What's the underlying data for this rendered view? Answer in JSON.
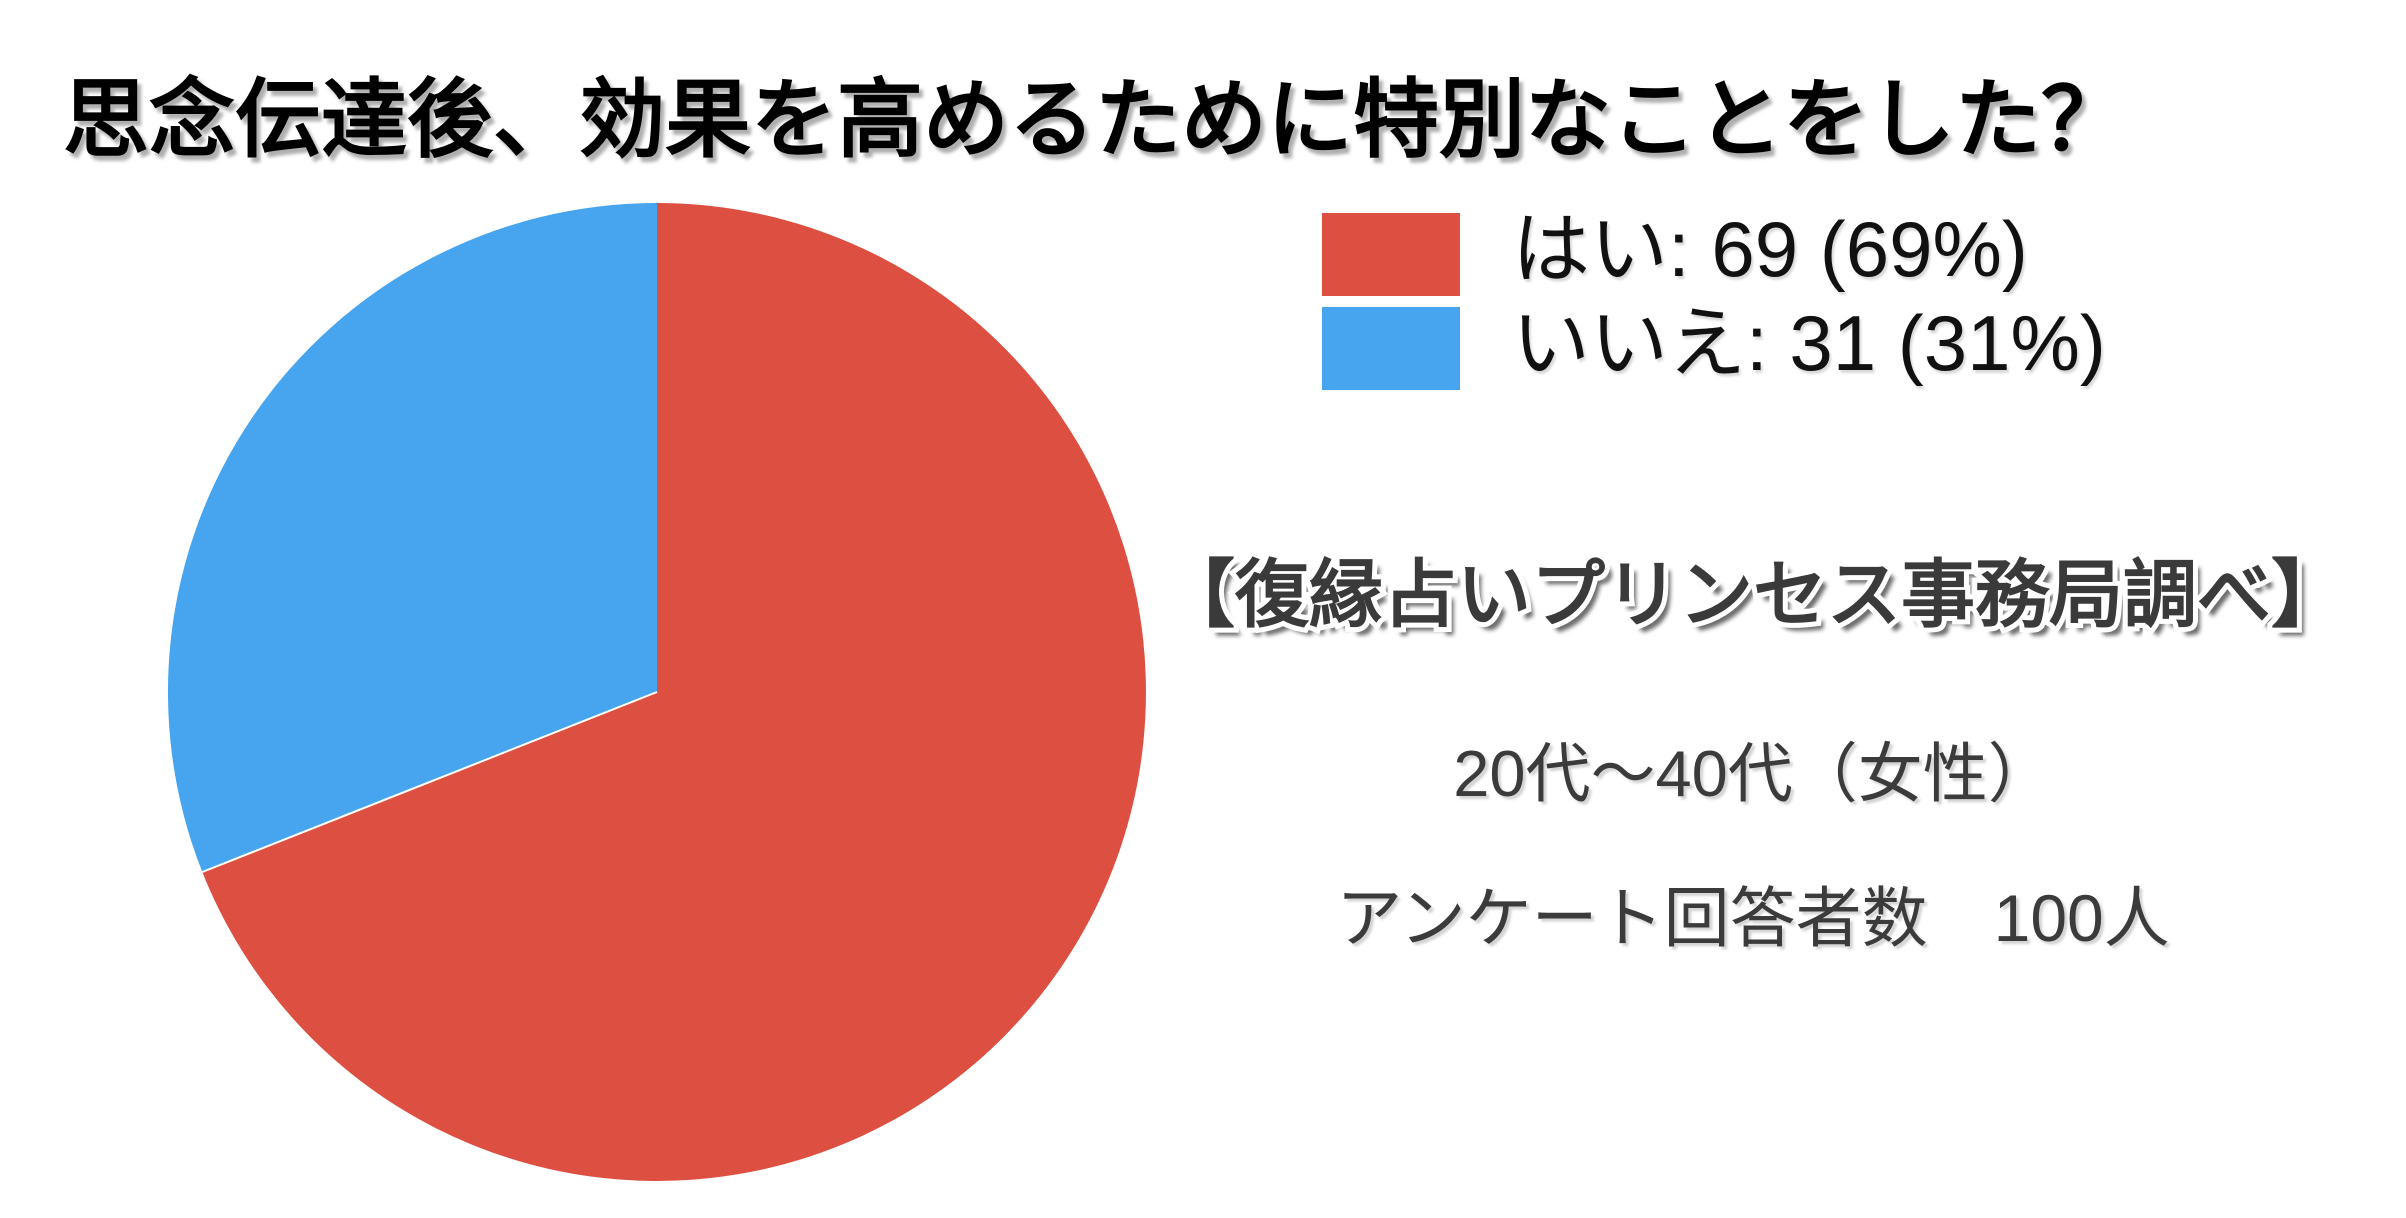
{
  "title": "思念伝達後、効果を高めるために特別なことをした？",
  "chart_data": {
    "type": "pie",
    "title": "思念伝達後、効果を高めるために特別なことをした？",
    "slices": [
      {
        "label": "はい",
        "value": 69,
        "percent": 69,
        "color": "#dc4f41"
      },
      {
        "label": "いいえ",
        "value": 31,
        "percent": 31,
        "color": "#46a5ee"
      }
    ],
    "start_angle_deg": 0,
    "direction": "clockwise",
    "legend_position": "right",
    "legend_entries": [
      "はい: 69 (69%)",
      "いいえ: 31 (31%)"
    ]
  },
  "legend": {
    "items": [
      {
        "label": "はい: 69 (69%)",
        "color": "#dc4f41"
      },
      {
        "label": "いいえ: 31 (31%)",
        "color": "#46a5ee"
      }
    ]
  },
  "annotations": {
    "source": "【復縁占いプリンセス事務局調べ】",
    "demographic": "20代～40代（女性）",
    "respondents": "アンケート回答者数　100人"
  }
}
